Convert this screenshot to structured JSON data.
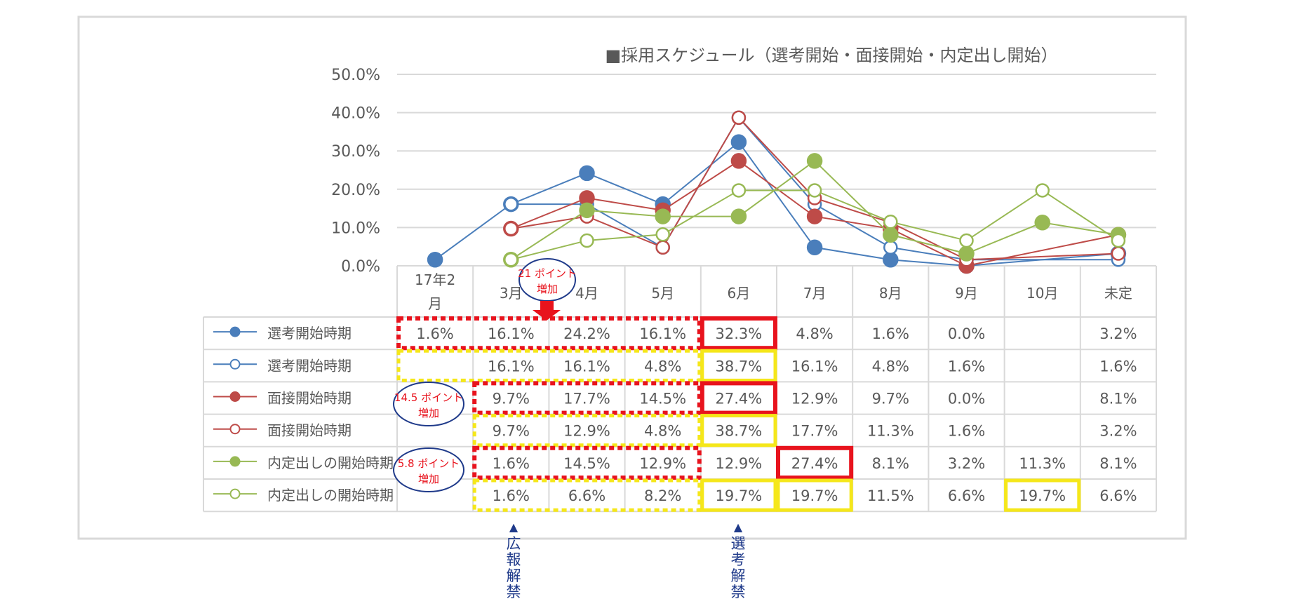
{
  "chart_data": {
    "type": "line",
    "title": "■採用スケジュール（選考開始・面接開始・内定出し開始）",
    "categories": [
      "17年2月",
      "3月",
      "4月",
      "5月",
      "6月",
      "7月",
      "8月",
      "9月",
      "10月",
      "未定"
    ],
    "y_ticks": [
      "50.0%",
      "40.0%",
      "30.0%",
      "20.0%",
      "10.0%",
      "0.0%"
    ],
    "ylim": [
      0,
      50
    ],
    "grid": true,
    "series": [
      {
        "name": "選考開始時期",
        "color": "#4a7ebb",
        "marker": "filled",
        "values": [
          1.6,
          16.1,
          24.2,
          16.1,
          32.3,
          4.8,
          1.6,
          0.0,
          null,
          3.2
        ],
        "labels": [
          "1.6%",
          "16.1%",
          "24.2%",
          "16.1%",
          "32.3%",
          "4.8%",
          "1.6%",
          "0.0%",
          "",
          "3.2%"
        ]
      },
      {
        "name": "選考開始時期",
        "color": "#4a7ebb",
        "marker": "hollow",
        "values": [
          null,
          16.1,
          16.1,
          4.8,
          38.7,
          16.1,
          4.8,
          1.6,
          null,
          1.6
        ],
        "labels": [
          "",
          "16.1%",
          "16.1%",
          "4.8%",
          "38.7%",
          "16.1%",
          "4.8%",
          "1.6%",
          "",
          "1.6%"
        ]
      },
      {
        "name": "面接開始時期",
        "color": "#be4b48",
        "marker": "filled",
        "values": [
          null,
          9.7,
          17.7,
          14.5,
          27.4,
          12.9,
          9.7,
          0.0,
          null,
          8.1
        ],
        "labels": [
          "",
          "9.7%",
          "17.7%",
          "14.5%",
          "27.4%",
          "12.9%",
          "9.7%",
          "0.0%",
          "",
          "8.1%"
        ]
      },
      {
        "name": "面接開始時期",
        "color": "#be4b48",
        "marker": "hollow",
        "values": [
          null,
          9.7,
          12.9,
          4.8,
          38.7,
          17.7,
          11.3,
          1.6,
          null,
          3.2
        ],
        "labels": [
          "",
          "9.7%",
          "12.9%",
          "4.8%",
          "38.7%",
          "17.7%",
          "11.3%",
          "1.6%",
          "",
          "3.2%"
        ]
      },
      {
        "name": "内定出しの開始時期",
        "color": "#98b954",
        "marker": "filled",
        "values": [
          null,
          1.6,
          14.5,
          12.9,
          12.9,
          27.4,
          8.1,
          3.2,
          11.3,
          8.1
        ],
        "labels": [
          "",
          "1.6%",
          "14.5%",
          "12.9%",
          "12.9%",
          "27.4%",
          "8.1%",
          "3.2%",
          "11.3%",
          "8.1%"
        ]
      },
      {
        "name": "内定出しの開始時期",
        "color": "#98b954",
        "marker": "hollow",
        "values": [
          null,
          1.6,
          6.6,
          8.2,
          19.7,
          19.7,
          11.5,
          6.6,
          19.7,
          6.6
        ],
        "labels": [
          "",
          "1.6%",
          "6.6%",
          "8.2%",
          "19.7%",
          "19.7%",
          "11.5%",
          "6.6%",
          "19.7%",
          "6.6%"
        ]
      }
    ],
    "annotations": {
      "callout_21_line1": "21 ポイント",
      "callout_21_line2": "増加",
      "callout_145_line1": "14.5 ポイント",
      "callout_145_line2": "増加",
      "callout_58_line1": "5.8 ポイント",
      "callout_58_line2": "増加",
      "arrow_koho": "▲",
      "label_koho": [
        "広",
        "報",
        "解",
        "禁"
      ],
      "arrow_senko": "▲",
      "label_senko": [
        "選",
        "考",
        "解",
        "禁"
      ]
    },
    "highlight_colors": {
      "red": "#e8131d",
      "yellow": "#f5e71a",
      "callout_text": "#e8131d",
      "callout_border": "#1f3a8a",
      "note_text": "#1f3a8a"
    }
  }
}
